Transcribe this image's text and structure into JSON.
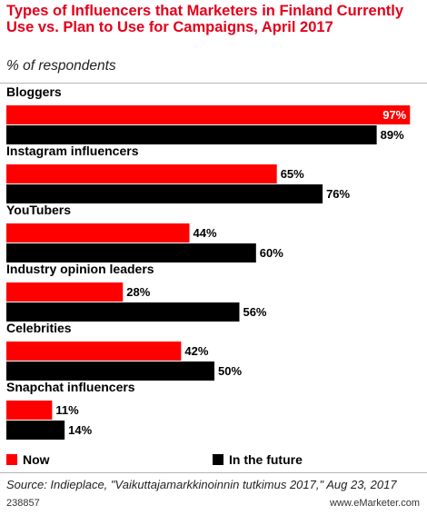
{
  "title": "Types of Influencers that Marketers in Finland Currently Use vs. Plan to Use for Campaigns, April 2017",
  "subtitle": "% of respondents",
  "colors": {
    "now": "#ff0000",
    "future": "#000000"
  },
  "legend": {
    "now_label": "Now",
    "future_label": "In the future"
  },
  "source": "Source: Indieplace, \"Vaikuttajamarkkinoinnin tutkimus 2017,\" Aug 23, 2017",
  "chart_id": "238857",
  "brand": "www.eMarketer.com",
  "chart_data": {
    "type": "bar",
    "orientation": "horizontal",
    "categories": [
      "Bloggers",
      "Instagram influencers",
      "YouTubers",
      "Industry opinion leaders",
      "Celebrities",
      "Snapchat influencers"
    ],
    "series": [
      {
        "name": "Now",
        "values": [
          97,
          65,
          44,
          28,
          42,
          11
        ]
      },
      {
        "name": "In the future",
        "values": [
          89,
          76,
          60,
          56,
          50,
          14
        ]
      }
    ],
    "value_suffix": "%",
    "xlim": [
      0,
      100
    ],
    "grid": false,
    "legend_position": "bottom"
  }
}
